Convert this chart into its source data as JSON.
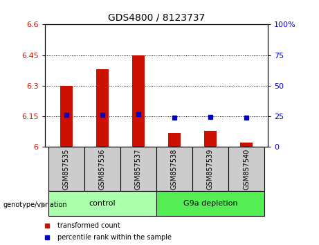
{
  "title": "GDS4800 / 8123737",
  "samples": [
    "GSM857535",
    "GSM857536",
    "GSM857537",
    "GSM857538",
    "GSM857539",
    "GSM857540"
  ],
  "bar_values": [
    6.3,
    6.38,
    6.449,
    6.07,
    6.08,
    6.02
  ],
  "dot_values": [
    6.157,
    6.158,
    6.16,
    6.145,
    6.148,
    6.143
  ],
  "bar_color": "#cc1100",
  "dot_color": "#0000cc",
  "ylim": [
    6.0,
    6.6
  ],
  "y_ticks": [
    6.0,
    6.15,
    6.3,
    6.45,
    6.6
  ],
  "y_tick_labels": [
    "6",
    "6.15",
    "6.3",
    "6.45",
    "6.6"
  ],
  "right_yticks": [
    0,
    25,
    50,
    75,
    100
  ],
  "right_ytick_labels": [
    "0",
    "25",
    "50",
    "75",
    "100%"
  ],
  "groups": [
    {
      "label": "control",
      "span": [
        0,
        3
      ],
      "color": "#aaffaa"
    },
    {
      "label": "G9a depletion",
      "span": [
        3,
        6
      ],
      "color": "#55ee55"
    }
  ],
  "group_label_prefix": "genotype/variation",
  "legend_items": [
    {
      "label": "transformed count",
      "color": "#cc1100"
    },
    {
      "label": "percentile rank within the sample",
      "color": "#0000cc"
    }
  ],
  "bg_color": "#ffffff",
  "plot_bg_color": "#ffffff",
  "tick_label_color_left": "#cc1100",
  "tick_label_color_right": "#0000cc",
  "sample_bg_color": "#cccccc",
  "bar_width": 0.35,
  "base_value": 6.0
}
